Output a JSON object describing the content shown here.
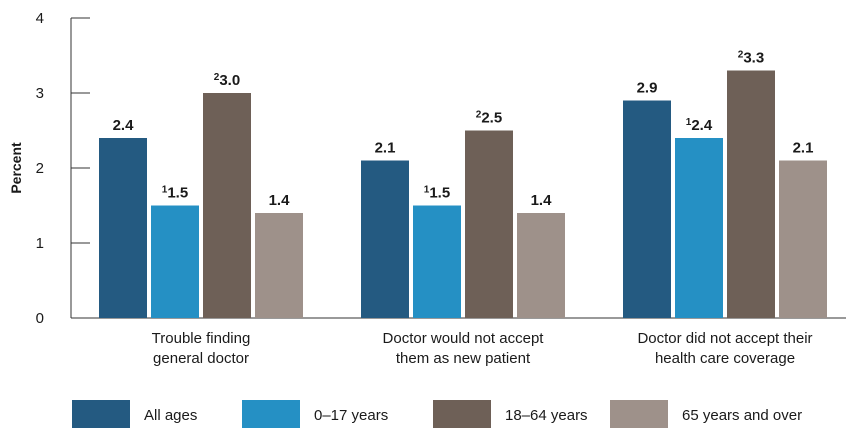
{
  "chart_data": {
    "type": "bar",
    "ylabel": "Percent",
    "ylim": [
      0,
      4
    ],
    "yticks": [
      0,
      1,
      2,
      3,
      4
    ],
    "categories": [
      [
        "Trouble finding",
        "general doctor"
      ],
      [
        "Doctor would not accept",
        "them as new patient"
      ],
      [
        "Doctor did not accept their",
        "health care coverage"
      ]
    ],
    "series": [
      {
        "name": "All ages",
        "color": "#245a81",
        "values": [
          2.4,
          2.1,
          2.9
        ],
        "labels": [
          "2.4",
          "2.1",
          "2.9"
        ],
        "notes": [
          "",
          "",
          ""
        ]
      },
      {
        "name": "0–17 years",
        "color": "#2590c4",
        "values": [
          1.5,
          1.5,
          2.4
        ],
        "labels": [
          "1.5",
          "1.5",
          "2.4"
        ],
        "notes": [
          "1",
          "1",
          "1"
        ]
      },
      {
        "name": "18–64 years",
        "color": "#6e6057",
        "values": [
          3.0,
          2.5,
          3.3
        ],
        "labels": [
          "3.0",
          "2.5",
          "3.3"
        ],
        "notes": [
          "2",
          "2",
          "2"
        ]
      },
      {
        "name": "65 years and over",
        "color": "#9e918a",
        "values": [
          1.4,
          1.4,
          2.1
        ],
        "labels": [
          "1.4",
          "1.4",
          "2.1"
        ],
        "notes": [
          "",
          "",
          ""
        ]
      }
    ],
    "legend_position": "bottom",
    "grid": false
  }
}
